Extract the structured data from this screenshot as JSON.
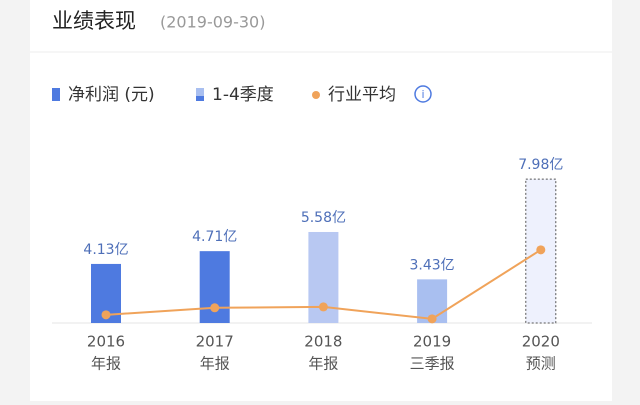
{
  "header": {
    "title": "业绩表现",
    "date": "(2019-09-30)"
  },
  "chart_data": {
    "type": "bar-line",
    "legend": [
      {
        "name": "净利润 (元)",
        "color": "#4e7ae0",
        "shape": "bar"
      },
      {
        "name": "1-4季度",
        "color": "#a9bff0",
        "shape": "gradient"
      },
      {
        "name": "行业平均",
        "color": "#f0a35a",
        "shape": "dot"
      }
    ],
    "categories": [
      "2016",
      "2017",
      "2018",
      "2019",
      "2020"
    ],
    "category_sublabels": [
      "年报",
      "年报",
      "年报",
      "三季报",
      "预测"
    ],
    "ylim": [
      1.45,
      9.3
    ],
    "series": [
      {
        "name": "净利润 (元)",
        "kind": "bar",
        "values": [
          4.13,
          4.71,
          5.58,
          3.43,
          7.98
        ],
        "value_labels": [
          "4.13亿",
          "4.71亿",
          "5.58亿",
          "3.43亿",
          "7.98亿"
        ],
        "colors": [
          "#4e7ae0",
          "#4e7ae0",
          "#b8c8f2",
          "#a9bff0",
          "#eef1fd"
        ],
        "dashed": [
          false,
          false,
          false,
          false,
          true
        ]
      },
      {
        "name": "行业平均",
        "kind": "line",
        "color": "#f0a35a",
        "values": [
          1.82,
          2.14,
          2.18,
          1.64,
          4.77
        ]
      }
    ]
  }
}
